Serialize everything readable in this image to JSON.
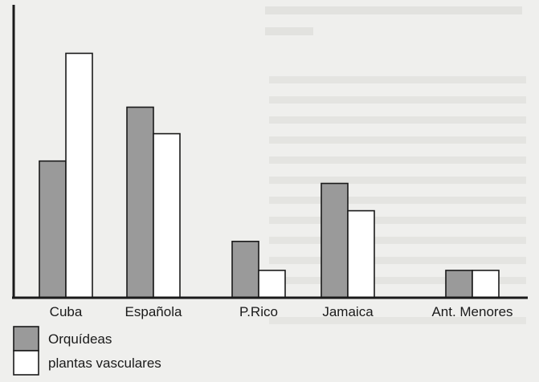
{
  "chart_data": {
    "type": "bar",
    "title": "",
    "xlabel": "",
    "ylabel": "",
    "categories": [
      "Cuba",
      "Española",
      "P.Rico",
      "Jamaica",
      "Ant. Menores"
    ],
    "series": [
      {
        "name": "Orquídeas",
        "values": [
          165,
          230,
          68,
          138,
          33
        ],
        "color": "#9a9a9a"
      },
      {
        "name": "plantas vasculares",
        "values": [
          295,
          198,
          33,
          105,
          33
        ],
        "color": "#ffffff"
      }
    ],
    "ylim": [
      0,
      340
    ],
    "grid": false,
    "legend_position": "bottom-left"
  }
}
